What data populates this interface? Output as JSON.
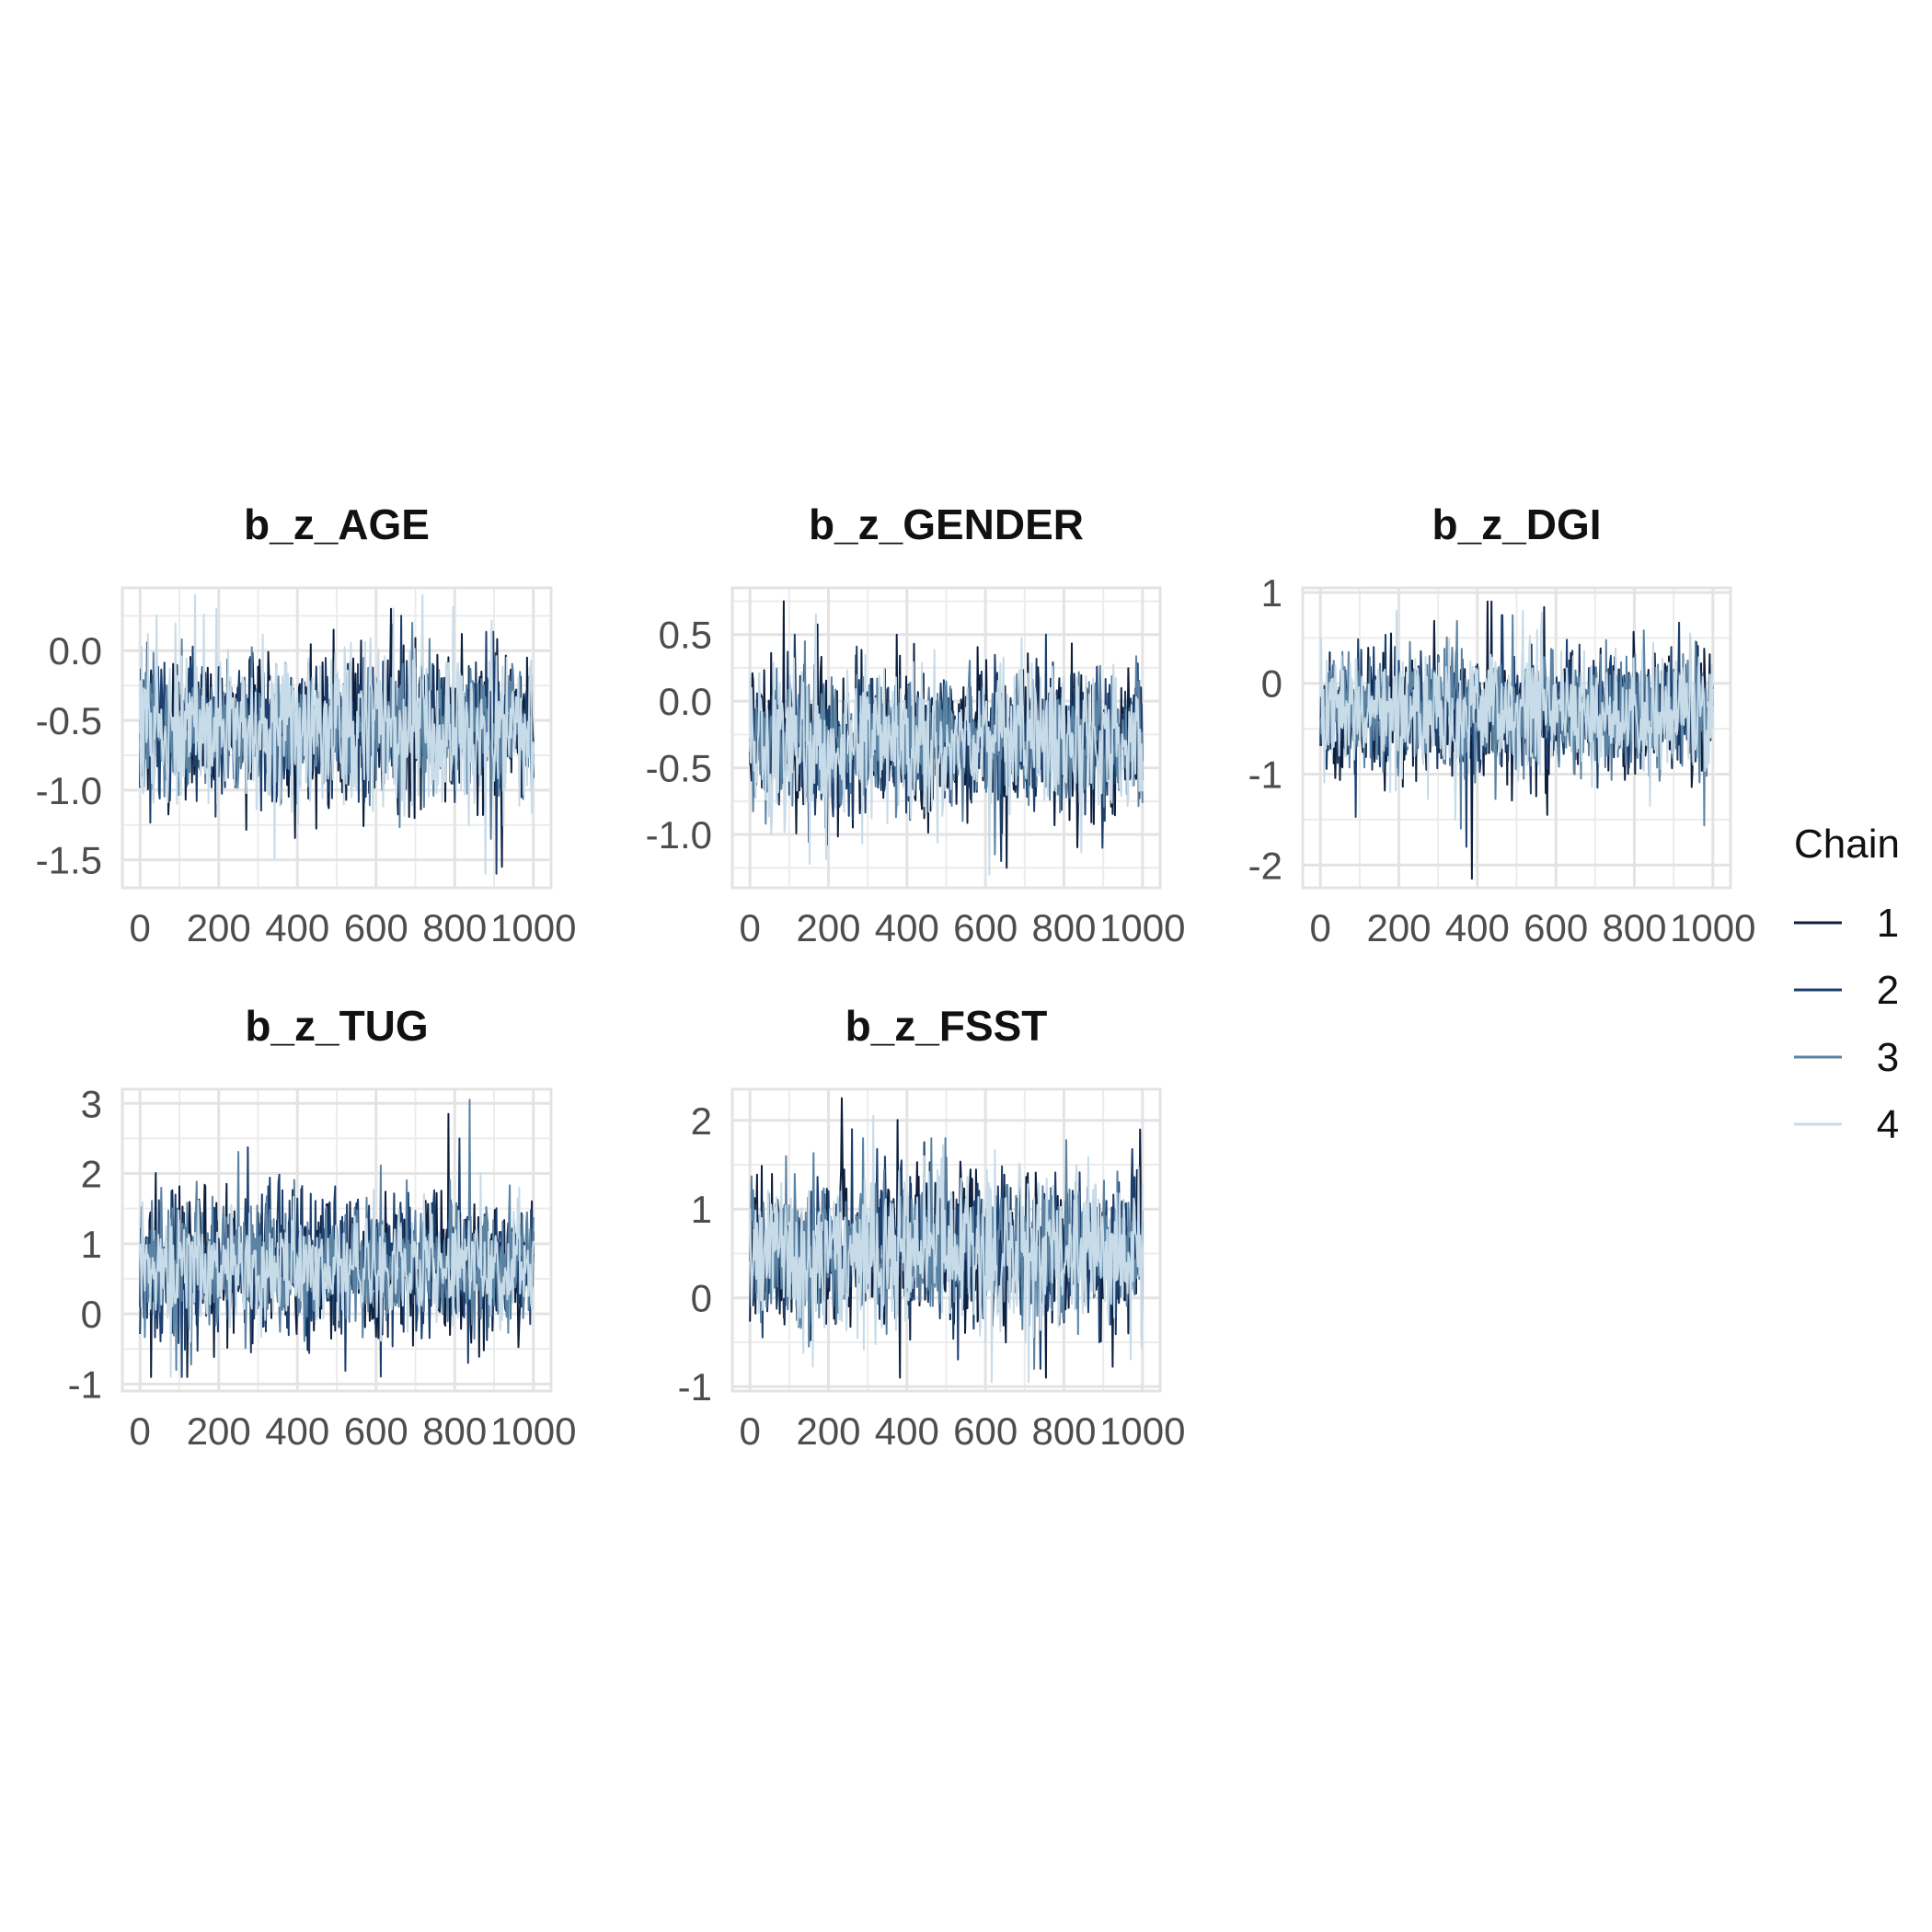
{
  "chart_data": {
    "type": "line",
    "x_range": [
      0,
      1000
    ],
    "x_ticks": [
      0,
      200,
      400,
      600,
      800,
      1000
    ],
    "grid": true,
    "legend": {
      "title": "Chain",
      "placement": "right",
      "entries": [
        {
          "name": "1",
          "color": "#0e1f3e"
        },
        {
          "name": "2",
          "color": "#1c3f6e"
        },
        {
          "name": "3",
          "color": "#5b83a3"
        },
        {
          "name": "4",
          "color": "#c7dbe8"
        }
      ]
    },
    "panels": [
      {
        "title": "b_z_AGE",
        "ylim": [
          -1.7,
          0.45
        ],
        "y_ticks": [
          0.0,
          -0.5,
          -1.0,
          -1.5
        ],
        "y_tick_labels": [
          "0.0",
          "-0.5",
          "-1.0",
          "-1.5"
        ],
        "series": [
          {
            "name": "1",
            "mean": -0.55,
            "min": -1.55,
            "max": 0.3
          },
          {
            "name": "2",
            "mean": -0.55,
            "min": -1.6,
            "max": 0.25
          },
          {
            "name": "3",
            "mean": -0.55,
            "min": -1.35,
            "max": 0.2
          },
          {
            "name": "4",
            "mean": -0.55,
            "min": -1.6,
            "max": 0.4
          }
        ]
      },
      {
        "title": "b_z_GENDER",
        "ylim": [
          -1.4,
          0.85
        ],
        "y_ticks": [
          0.5,
          0.0,
          -0.5,
          -1.0
        ],
        "y_tick_labels": [
          "0.5",
          "0.0",
          "-0.5",
          "-1.0"
        ],
        "series": [
          {
            "name": "1",
            "mean": -0.3,
            "min": -1.25,
            "max": 0.75
          },
          {
            "name": "2",
            "mean": -0.3,
            "min": -1.2,
            "max": 0.5
          },
          {
            "name": "3",
            "mean": -0.3,
            "min": -1.15,
            "max": 0.45
          },
          {
            "name": "4",
            "mean": -0.3,
            "min": -1.3,
            "max": 0.65
          }
        ]
      },
      {
        "title": "b_z_DGI",
        "ylim": [
          -2.25,
          1.05
        ],
        "y_ticks": [
          1,
          0,
          -1,
          -2
        ],
        "y_tick_labels": [
          "1",
          "0",
          "-1",
          "-2"
        ],
        "series": [
          {
            "name": "1",
            "mean": -0.3,
            "min": -2.15,
            "max": 0.9
          },
          {
            "name": "2",
            "mean": -0.3,
            "min": -1.8,
            "max": 0.75
          },
          {
            "name": "3",
            "mean": -0.3,
            "min": -1.6,
            "max": 0.75
          },
          {
            "name": "4",
            "mean": -0.3,
            "min": -1.5,
            "max": 0.8
          }
        ]
      },
      {
        "title": "b_z_TUG",
        "ylim": [
          -1.1,
          3.2
        ],
        "y_ticks": [
          3,
          2,
          1,
          0,
          -1
        ],
        "y_tick_labels": [
          "3",
          "2",
          "1",
          "0",
          "-1"
        ],
        "series": [
          {
            "name": "1",
            "mean": 0.7,
            "min": -0.9,
            "max": 2.85
          },
          {
            "name": "2",
            "mean": 0.7,
            "min": -0.9,
            "max": 2.5
          },
          {
            "name": "3",
            "mean": 0.7,
            "min": -0.8,
            "max": 3.05
          },
          {
            "name": "4",
            "mean": 0.7,
            "min": -0.9,
            "max": 2.0
          }
        ]
      },
      {
        "title": "b_z_FSST",
        "ylim": [
          -1.05,
          2.35
        ],
        "y_ticks": [
          2,
          1,
          0,
          -1
        ],
        "y_tick_labels": [
          "2",
          "1",
          "0",
          "-1"
        ],
        "series": [
          {
            "name": "1",
            "mean": 0.55,
            "min": -0.9,
            "max": 2.25
          },
          {
            "name": "2",
            "mean": 0.55,
            "min": -0.8,
            "max": 1.9
          },
          {
            "name": "3",
            "mean": 0.55,
            "min": -0.8,
            "max": 1.8
          },
          {
            "name": "4",
            "mean": 0.55,
            "min": -0.95,
            "max": 2.05
          }
        ]
      }
    ]
  }
}
